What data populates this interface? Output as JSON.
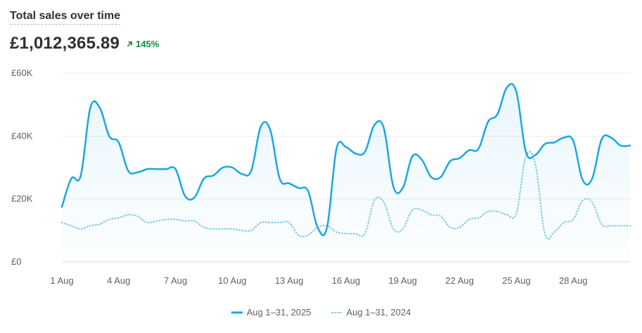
{
  "header": {
    "title": "Total sales over time",
    "total": "£1,012,365.89",
    "change": "145%"
  },
  "colors": {
    "current": "#1ba6e5",
    "previous": "#7cc6ea",
    "grid": "#ebebeb"
  },
  "chart_data": {
    "type": "line",
    "title": "Total sales over time",
    "ylim": [
      0,
      60000
    ],
    "y_ticks": [
      {
        "value": 0,
        "label": "£0"
      },
      {
        "value": 20000,
        "label": "£20K"
      },
      {
        "value": 40000,
        "label": "£40K"
      },
      {
        "value": 60000,
        "label": "£60K"
      }
    ],
    "x_ticks": [
      {
        "day": 1,
        "label": "1 Aug"
      },
      {
        "day": 4,
        "label": "4 Aug"
      },
      {
        "day": 7,
        "label": "7 Aug"
      },
      {
        "day": 10,
        "label": "10 Aug"
      },
      {
        "day": 13,
        "label": "13 Aug"
      },
      {
        "day": 16,
        "label": "16 Aug"
      },
      {
        "day": 19,
        "label": "19 Aug"
      },
      {
        "day": 22,
        "label": "22 Aug"
      },
      {
        "day": 25,
        "label": "25 Aug"
      },
      {
        "day": 28,
        "label": "28 Aug"
      }
    ],
    "x": [
      1.0,
      1.5,
      2.0,
      2.5,
      3.0,
      3.5,
      4.0,
      4.5,
      5.0,
      5.5,
      6.0,
      6.5,
      7.0,
      7.5,
      8.0,
      8.5,
      9.0,
      9.5,
      10.0,
      10.5,
      11.0,
      11.5,
      12.0,
      12.5,
      13.0,
      13.5,
      14.0,
      14.5,
      15.0,
      15.5,
      16.0,
      16.5,
      17.0,
      17.5,
      18.0,
      18.5,
      19.0,
      19.5,
      20.0,
      20.5,
      21.0,
      21.5,
      22.0,
      22.5,
      23.0,
      23.5,
      24.0,
      24.5,
      25.0,
      25.5,
      26.0,
      26.5,
      27.0,
      27.5,
      28.0,
      28.5,
      29.0,
      29.5,
      30.0,
      30.5,
      31.0
    ],
    "series": [
      {
        "name": "Aug 1–31, 2025",
        "style": "solid",
        "values": [
          17500,
          26500,
          27500,
          49000,
          49000,
          40000,
          38000,
          29000,
          28500,
          29500,
          29500,
          29500,
          29500,
          21000,
          20500,
          26500,
          27500,
          30000,
          30000,
          28000,
          29000,
          43000,
          42000,
          26500,
          25000,
          23500,
          22500,
          11000,
          11000,
          36000,
          36500,
          34500,
          35000,
          43500,
          42500,
          24000,
          23500,
          33500,
          32500,
          27000,
          27000,
          32000,
          33000,
          35500,
          36000,
          44500,
          47000,
          55500,
          54000,
          35000,
          34000,
          37500,
          38000,
          39500,
          38500,
          26000,
          26500,
          39000,
          39500,
          37000,
          37000
        ]
      },
      {
        "name": "Aug 1–31, 2024",
        "style": "dotted",
        "values": [
          12500,
          11500,
          10500,
          11500,
          12000,
          13500,
          14000,
          15000,
          14500,
          12500,
          13000,
          13500,
          13500,
          13000,
          13000,
          11000,
          10500,
          10500,
          10500,
          10000,
          10000,
          12500,
          12500,
          12500,
          12500,
          8500,
          8500,
          11000,
          11500,
          9500,
          9000,
          9000,
          9000,
          19500,
          19000,
          10500,
          10500,
          16500,
          16500,
          15000,
          14500,
          11000,
          11000,
          13500,
          14000,
          16000,
          16000,
          15000,
          15500,
          33500,
          31000,
          9000,
          9500,
          12500,
          13500,
          19500,
          19000,
          12000,
          11500,
          11500,
          11500
        ]
      }
    ]
  }
}
